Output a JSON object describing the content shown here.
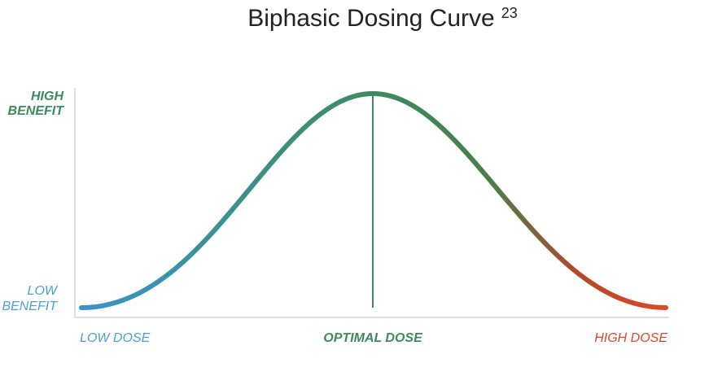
{
  "title": {
    "text": "Biphasic Dosing Curve",
    "superscript": "23"
  },
  "y_labels": {
    "high": [
      "HIGH",
      "BENEFIT"
    ],
    "low": [
      "LOW",
      "BENEFIT"
    ]
  },
  "x_labels": {
    "low": "LOW DOSE",
    "optimal": "OPTIMAL DOSE",
    "high": "HIGH DOSE"
  }
}
